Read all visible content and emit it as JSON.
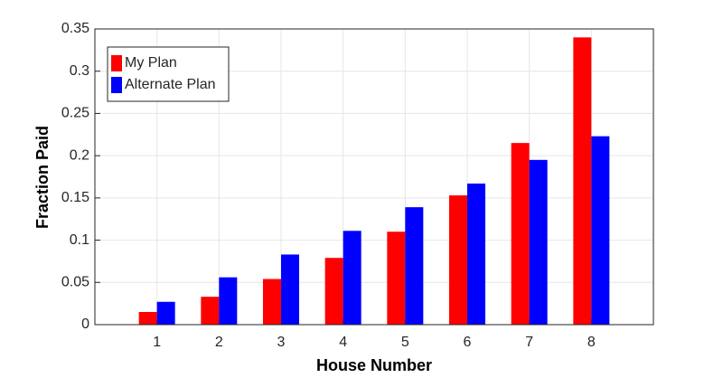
{
  "chart_data": {
    "type": "bar",
    "xlabel": "House Number",
    "ylabel": "Fraction Paid",
    "x": [
      1,
      2,
      3,
      4,
      5,
      6,
      7,
      8
    ],
    "series": [
      {
        "name": "My Plan",
        "color": "#ff0000",
        "values": [
          0.015,
          0.033,
          0.054,
          0.079,
          0.11,
          0.153,
          0.215,
          0.34
        ]
      },
      {
        "name": "Alternate Plan",
        "color": "#0000ff",
        "values": [
          0.027,
          0.056,
          0.083,
          0.111,
          0.139,
          0.167,
          0.195,
          0.223
        ]
      }
    ],
    "xlim": [
      0,
      9
    ],
    "xticks": [
      1,
      2,
      3,
      4,
      5,
      6,
      7,
      8
    ],
    "ylim": [
      0,
      0.35
    ],
    "yticks": [
      0,
      0.05,
      0.1,
      0.15,
      0.2,
      0.25,
      0.3,
      0.35
    ],
    "grid": true,
    "legend": "upper-left"
  }
}
